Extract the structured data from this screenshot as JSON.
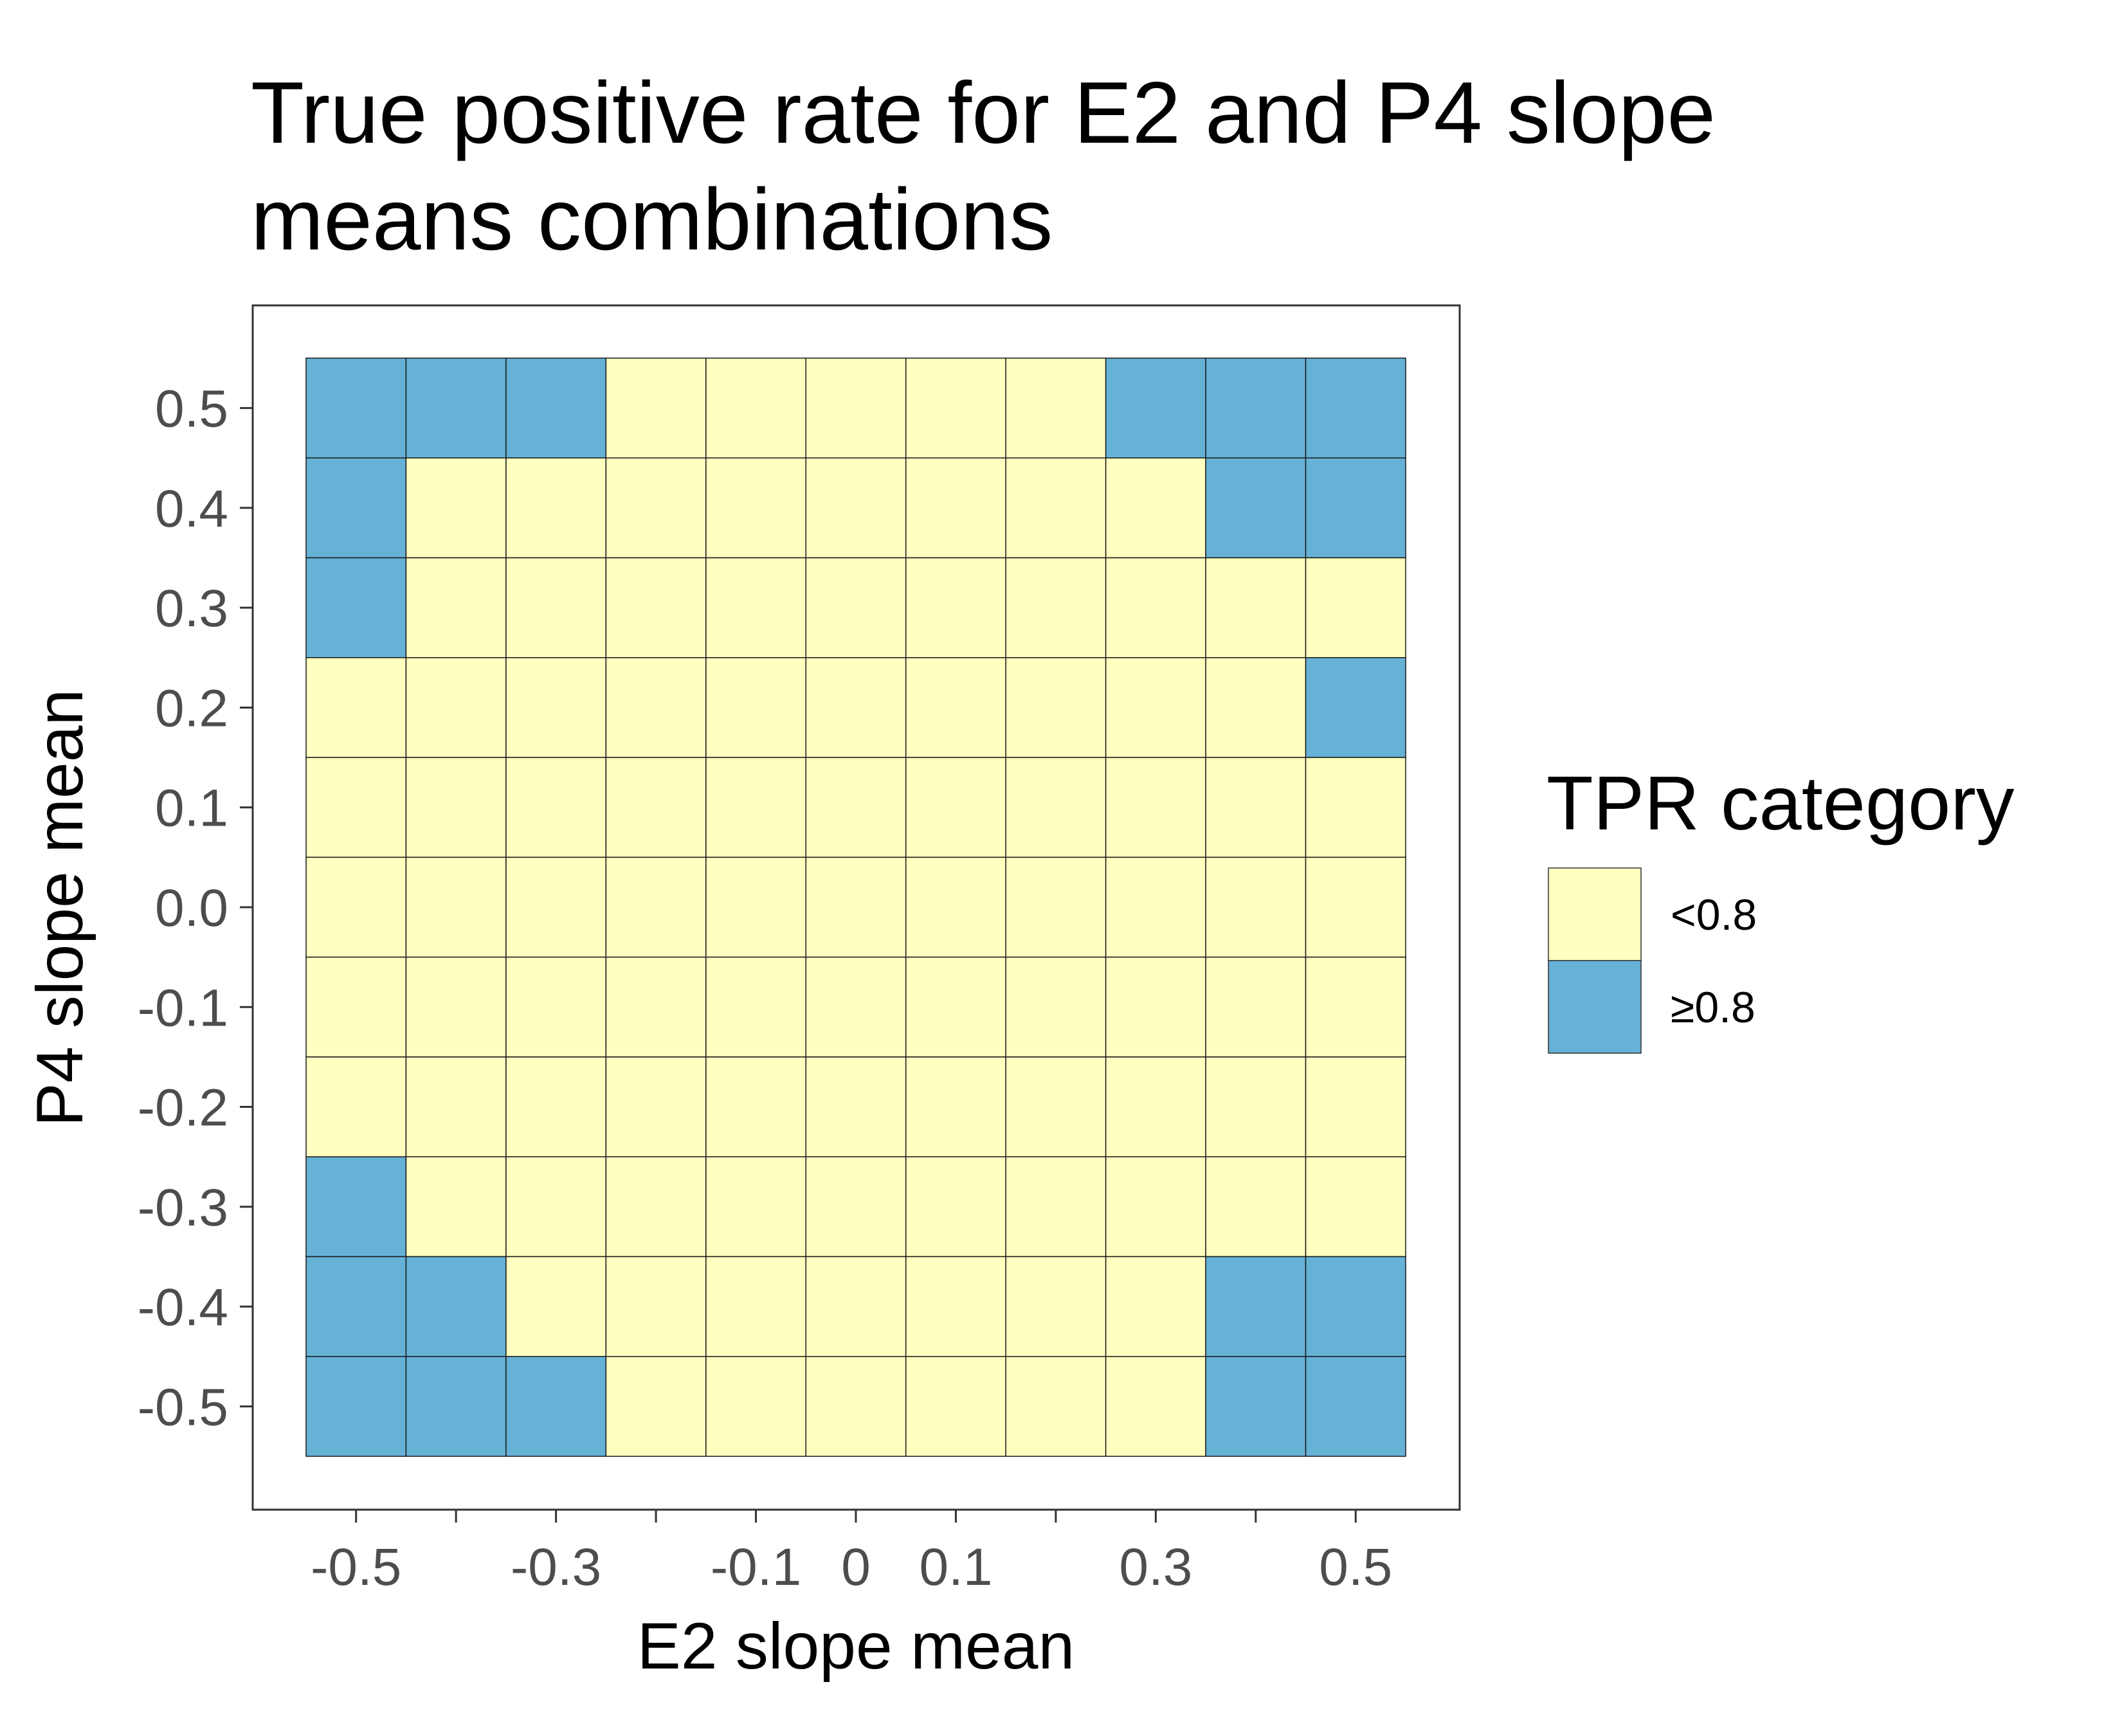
{
  "chart_data": {
    "type": "heatmap",
    "title_lines": [
      "True positive rate for E2 and P4 slope",
      "means combinations"
    ],
    "xlabel": "E2 slope mean",
    "ylabel": "P4 slope mean",
    "x": [
      -0.5,
      -0.4,
      -0.3,
      -0.2,
      -0.1,
      0.0,
      0.1,
      0.2,
      0.3,
      0.4,
      0.5
    ],
    "y": [
      -0.5,
      -0.4,
      -0.3,
      -0.2,
      -0.1,
      0.0,
      0.1,
      0.2,
      0.3,
      0.4,
      0.5
    ],
    "x_tick_labels": [
      {
        "value": -0.5,
        "label": "-0.5"
      },
      {
        "value": -0.3,
        "label": "-0.3"
      },
      {
        "value": -0.1,
        "label": "-0.1"
      },
      {
        "value": 0.0,
        "label": "0"
      },
      {
        "value": 0.1,
        "label": "0.1"
      },
      {
        "value": 0.3,
        "label": "0.3"
      },
      {
        "value": 0.5,
        "label": "0.5"
      }
    ],
    "x_minor_ticks": [
      -0.4,
      -0.2,
      0.2,
      0.4
    ],
    "y_tick_labels": [
      {
        "value": 0.5,
        "label": "0.5"
      },
      {
        "value": 0.4,
        "label": "0.4"
      },
      {
        "value": 0.3,
        "label": "0.3"
      },
      {
        "value": 0.2,
        "label": "0.2"
      },
      {
        "value": 0.1,
        "label": "0.1"
      },
      {
        "value": 0.0,
        "label": "0.0"
      },
      {
        "value": -0.1,
        "label": "-0.1"
      },
      {
        "value": -0.2,
        "label": "-0.2"
      },
      {
        "value": -0.3,
        "label": "-0.3"
      },
      {
        "value": -0.4,
        "label": "-0.4"
      },
      {
        "value": -0.5,
        "label": "-0.5"
      }
    ],
    "xlim": [
      -0.55,
      0.55
    ],
    "ylim": [
      -0.55,
      0.55
    ],
    "grid": false,
    "legend": {
      "title": "TPR category",
      "placement": "right",
      "items": [
        {
          "label": "<0.8",
          "color": "#FFFFC0"
        },
        {
          "label": "≥0.8",
          "color": "#66B1D6"
        }
      ]
    },
    "categories_by_row_top_to_bottom": [
      [
        1,
        1,
        1,
        0,
        0,
        0,
        0,
        0,
        1,
        1,
        1
      ],
      [
        1,
        0,
        0,
        0,
        0,
        0,
        0,
        0,
        0,
        1,
        1
      ],
      [
        1,
        0,
        0,
        0,
        0,
        0,
        0,
        0,
        0,
        0,
        0
      ],
      [
        0,
        0,
        0,
        0,
        0,
        0,
        0,
        0,
        0,
        0,
        1
      ],
      [
        0,
        0,
        0,
        0,
        0,
        0,
        0,
        0,
        0,
        0,
        0
      ],
      [
        0,
        0,
        0,
        0,
        0,
        0,
        0,
        0,
        0,
        0,
        0
      ],
      [
        0,
        0,
        0,
        0,
        0,
        0,
        0,
        0,
        0,
        0,
        0
      ],
      [
        0,
        0,
        0,
        0,
        0,
        0,
        0,
        0,
        0,
        0,
        0
      ],
      [
        1,
        0,
        0,
        0,
        0,
        0,
        0,
        0,
        0,
        0,
        0
      ],
      [
        1,
        1,
        0,
        0,
        0,
        0,
        0,
        0,
        0,
        1,
        1
      ],
      [
        1,
        1,
        1,
        0,
        0,
        0,
        0,
        0,
        0,
        1,
        1
      ]
    ]
  }
}
